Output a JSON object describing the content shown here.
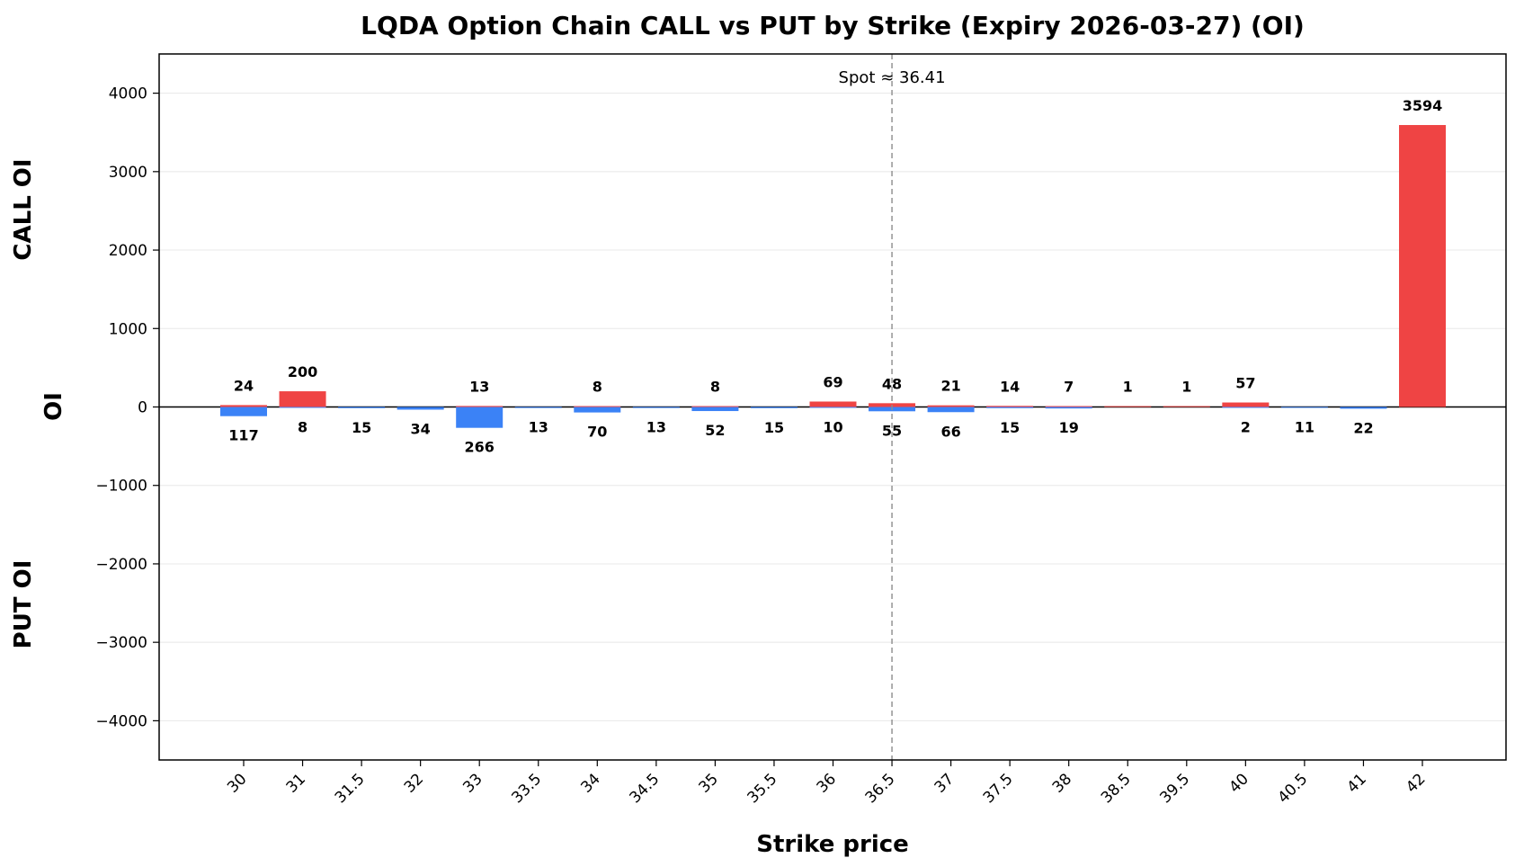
{
  "chart_data": {
    "type": "bar",
    "title": "LQDA Option Chain CALL vs PUT by Strike (Expiry 2026-03-27) (OI)",
    "xlabel": "Strike price",
    "ylabel": "OI",
    "ylabel_top": "CALL OI",
    "ylabel_bottom": "PUT OI",
    "categories": [
      "30",
      "31",
      "31.5",
      "32",
      "33",
      "33.5",
      "34",
      "34.5",
      "35",
      "35.5",
      "36",
      "36.5",
      "37",
      "37.5",
      "38",
      "38.5",
      "39.5",
      "40",
      "40.5",
      "41",
      "42"
    ],
    "series": [
      {
        "name": "CALL",
        "color": "#ef4444",
        "values": [
          24,
          200,
          null,
          null,
          13,
          null,
          8,
          null,
          8,
          null,
          69,
          48,
          21,
          14,
          7,
          1,
          1,
          57,
          null,
          null,
          3594
        ]
      },
      {
        "name": "PUT",
        "color": "#3b82f6",
        "values": [
          117,
          8,
          15,
          34,
          266,
          13,
          70,
          13,
          52,
          15,
          10,
          55,
          66,
          15,
          19,
          null,
          null,
          2,
          11,
          22,
          null
        ]
      }
    ],
    "ylim": [
      -4500,
      4500
    ],
    "yticks": [
      4000,
      3000,
      2000,
      1000,
      0,
      -1000,
      -2000,
      -3000,
      -4000
    ],
    "ytick_labels": [
      "4000",
      "3000",
      "2000",
      "1000",
      "0",
      "−1000",
      "−2000",
      "−3000",
      "−4000"
    ],
    "grid": true,
    "spot": {
      "value": 36.41,
      "label": "Spot ≈ 36.41",
      "category_position": 11
    }
  }
}
